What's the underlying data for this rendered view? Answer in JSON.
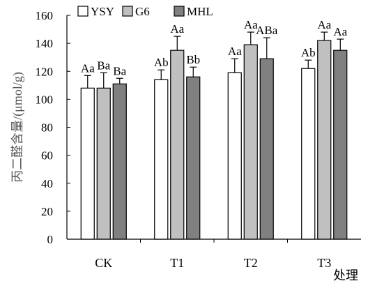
{
  "chart_data": {
    "type": "bar",
    "title": "",
    "xlabel": "处理",
    "ylabel": "丙二醛含量/(μmol/g)",
    "ylim": [
      0,
      160
    ],
    "yticks": [
      0,
      20,
      40,
      60,
      80,
      100,
      120,
      140,
      160
    ],
    "grid": false,
    "legend_position": "top-left",
    "categories": [
      "CK",
      "T1",
      "T2",
      "T3"
    ],
    "series": [
      {
        "name": "YSY",
        "color": "#ffffff",
        "values": [
          108,
          114,
          119,
          122
        ],
        "errors": [
          9,
          7,
          10,
          6
        ],
        "labels": [
          "Aa",
          "Ab",
          "Aa",
          "Ab"
        ]
      },
      {
        "name": "G6",
        "color": "#c0c0c0",
        "values": [
          108,
          135,
          139,
          142
        ],
        "errors": [
          11,
          10,
          9,
          6
        ],
        "labels": [
          "Ba",
          "Aa",
          "Aa",
          "Aa"
        ]
      },
      {
        "name": "MHL",
        "color": "#808080",
        "values": [
          111,
          116,
          129,
          135
        ],
        "errors": [
          4,
          7,
          15,
          8
        ],
        "labels": [
          "Ba",
          "Bb",
          "ABa",
          "Aa"
        ]
      }
    ]
  }
}
